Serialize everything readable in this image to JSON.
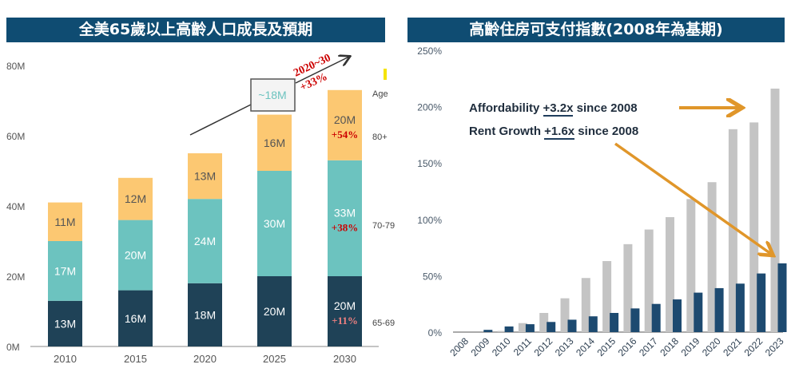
{
  "chart_data": [
    {
      "type": "bar",
      "stacked": true,
      "title": "全美65歲以上高齡人口成長及預期",
      "categories": [
        "2010",
        "2015",
        "2020",
        "2025",
        "2030"
      ],
      "yticks": [
        "0M",
        "20M",
        "40M",
        "60M",
        "80M"
      ],
      "ylim": [
        0,
        80
      ],
      "legend_title": "Age",
      "series": [
        {
          "name": "65-69",
          "color": "#1f4257",
          "values": [
            13,
            16,
            18,
            20,
            20
          ],
          "labels": [
            "13M",
            "16M",
            "18M",
            "20M",
            "20M"
          ]
        },
        {
          "name": "70-79",
          "color": "#6cc3bf",
          "values": [
            17,
            20,
            24,
            30,
            33
          ],
          "labels": [
            "17M",
            "20M",
            "24M",
            "30M",
            "33M"
          ]
        },
        {
          "name": "80+",
          "color": "#fcc872",
          "values": [
            11,
            12,
            13,
            16,
            20
          ],
          "labels": [
            "11M",
            "12M",
            "13M",
            "16M",
            "20M"
          ]
        }
      ],
      "growth_labels": {
        "65-69": "+11%",
        "70-79": "+38%",
        "80+": "+54%"
      },
      "callout_box": "~18M",
      "callout_arrow_label": [
        "2020~30",
        "+33%"
      ],
      "colors": {
        "growth": "#cc0000",
        "callout_text": "#6cc3bf"
      }
    },
    {
      "type": "bar",
      "title": "高齡住房可支付指數(2008年為基期)",
      "categories": [
        "2008",
        "2009",
        "2010",
        "2011",
        "2012",
        "2013",
        "2014",
        "2015",
        "2016",
        "2017",
        "2018",
        "2019",
        "2020",
        "2021",
        "2022",
        "2023"
      ],
      "yticks": [
        "0%",
        "50%",
        "100%",
        "150%",
        "200%",
        "250%"
      ],
      "ylim": [
        0,
        250
      ],
      "series": [
        {
          "color": "#c4c4c4",
          "values": [
            0,
            0,
            1,
            8,
            17,
            30,
            48,
            63,
            78,
            91,
            102,
            118,
            133,
            180,
            186,
            216
          ]
        },
        {
          "color": "#1d4a70",
          "values": [
            0,
            2,
            5,
            7,
            9,
            11,
            14,
            17,
            21,
            25,
            29,
            35,
            39,
            43,
            52,
            61
          ]
        }
      ],
      "annotations": [
        {
          "prefix": "Affordability ",
          "highlight": "+3.2x",
          "suffix": " since 2008"
        },
        {
          "prefix": "Rent Growth ",
          "highlight": "+1.6x",
          "suffix": " since 2008"
        }
      ],
      "colors": {
        "arrow": "#e0962a"
      }
    }
  ]
}
